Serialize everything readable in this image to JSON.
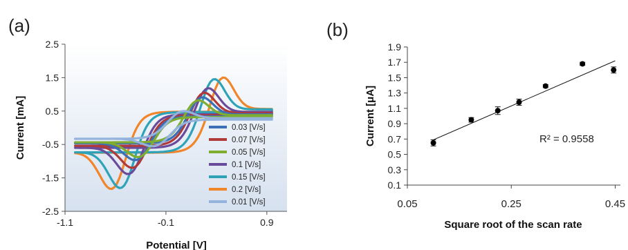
{
  "panel_a": {
    "label": "(a)",
    "chart_data": {
      "type": "line",
      "title": "",
      "xlabel": "Potential [V]",
      "ylabel": "Current [mA]",
      "xlim": [
        -1.1,
        1.1
      ],
      "ylim": [
        -2.5,
        2.5
      ],
      "xticks": [
        "-1.1",
        "-0.1",
        "0.9"
      ],
      "yticks": [
        "2.5",
        "1.5",
        "0.5",
        "-0.5",
        "-1.5",
        "-2.5"
      ],
      "legend_position": "lower-right",
      "background": "gradient-blue",
      "series": [
        {
          "name": "0.03 [V/s]",
          "color": "#3b6fb6",
          "rate": 0.03,
          "ipa": 1.0,
          "ipc": 1.05,
          "epa": 0.24,
          "epc": -0.38
        },
        {
          "name": "0.07 [V/s]",
          "color": "#b03a3a",
          "rate": 0.07,
          "ipa": 1.15,
          "ipc": 1.3,
          "epa": 0.26,
          "epc": -0.41
        },
        {
          "name": "0.05 [V/s]",
          "color": "#7fad2f",
          "rate": 0.05,
          "ipa": 0.9,
          "ipc": 0.95,
          "epa": 0.2,
          "epc": -0.35
        },
        {
          "name": "0.1 [V/s]",
          "color": "#6a4a9a",
          "rate": 0.1,
          "ipa": 1.3,
          "ipc": 1.5,
          "epa": 0.3,
          "epc": -0.45
        },
        {
          "name": "0.15 [V/s]",
          "color": "#2ea3b8",
          "rate": 0.15,
          "ipa": 1.6,
          "ipc": 1.95,
          "epa": 0.36,
          "epc": -0.53
        },
        {
          "name": "0.2 [V/s]",
          "color": "#f0852a",
          "rate": 0.2,
          "ipa": 1.65,
          "ipc": 1.98,
          "epa": 0.45,
          "epc": -0.62
        },
        {
          "name": "0.01 [V/s]",
          "color": "#94b3dc",
          "rate": 0.01,
          "ipa": 0.55,
          "ipc": 0.6,
          "epa": 0.05,
          "epc": -0.2
        }
      ]
    }
  },
  "panel_b": {
    "label": "(b)",
    "annotation": "R² = 0.9558",
    "chart_data": {
      "type": "scatter",
      "title": "",
      "xlabel": "Square root of the scan rate",
      "ylabel": "Current [μA]",
      "xlim": [
        0.05,
        0.46
      ],
      "ylim": [
        0.1,
        1.9
      ],
      "xticks": [
        "0.05",
        "0.25",
        "0.45"
      ],
      "yticks": [
        "1.9",
        "1.7",
        "1.5",
        "1.3",
        "1.1",
        "0.9",
        "0.7",
        "0.5",
        "0.3",
        "0.1"
      ],
      "grid": false,
      "x": [
        0.1,
        0.173,
        0.224,
        0.265,
        0.316,
        0.387,
        0.447
      ],
      "y": [
        0.65,
        0.95,
        1.07,
        1.18,
        1.39,
        1.68,
        1.6
      ],
      "yerr": [
        0.04,
        0.03,
        0.05,
        0.04,
        0.02,
        0.02,
        0.04
      ],
      "trendline": {
        "type": "linear",
        "x": [
          0.1,
          0.45
        ],
        "y": [
          0.69,
          1.72
        ]
      }
    }
  }
}
